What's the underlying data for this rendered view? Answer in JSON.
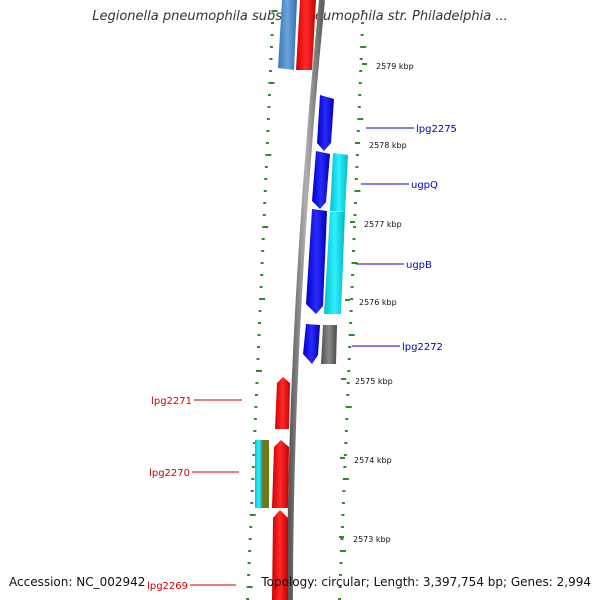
{
  "title": "Legionella pneumophila subsp. pneumophila str. Philadelphia ...",
  "footer": {
    "accession": "Accession: NC_002942",
    "summary": "Topology: circular; Length: 3,397,754 bp; Genes: 2,994"
  },
  "scale": {
    "unit_suffix": " kbp",
    "ticks": [
      2579,
      2578,
      2577,
      2576,
      2575,
      2574,
      2573
    ]
  },
  "colors": {
    "backbone": "#808080",
    "strand_dots": "#2e8b2e",
    "forward_gene": "#0000ee",
    "reverse_gene": "#ee0000",
    "cyan_feature": "#00d8e8",
    "grey_feature": "#666666",
    "steelblue_feature": "#4a86c0",
    "olive_feature": "#6b7a1e"
  },
  "gene_labels": [
    {
      "text": "lpg2275",
      "side": "right",
      "color": "#0000cc"
    },
    {
      "text": "ugpQ",
      "side": "right",
      "color": "#0000cc"
    },
    {
      "text": "ugpB",
      "side": "right",
      "color": "#0000cc"
    },
    {
      "text": "lpg2272",
      "side": "right",
      "color": "#0000cc"
    },
    {
      "text": "lpg2271",
      "side": "left",
      "color": "#cc0000"
    },
    {
      "text": "lpg2270",
      "side": "left",
      "color": "#cc0000"
    },
    {
      "text": "lpg2269",
      "side": "left",
      "color": "#cc0000"
    }
  ]
}
